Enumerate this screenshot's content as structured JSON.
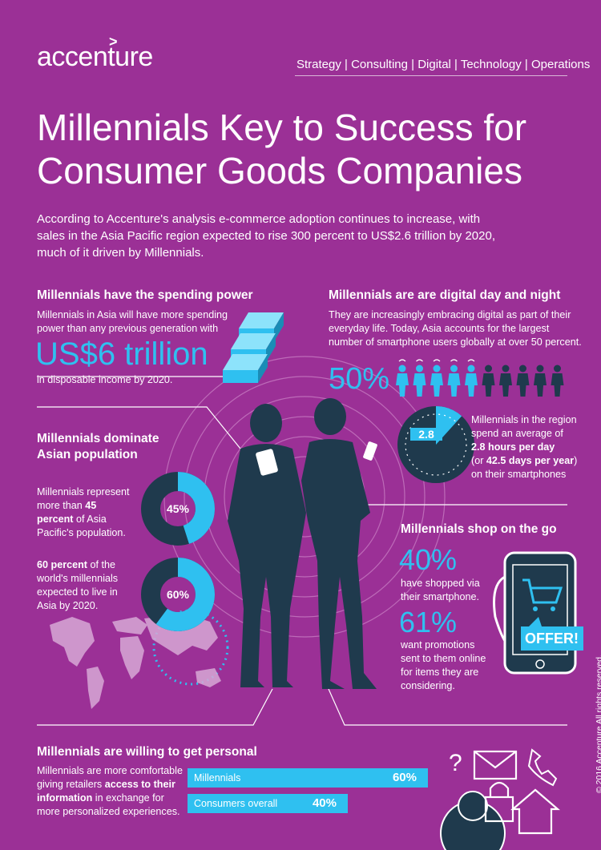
{
  "header": {
    "logo_text": "accenture",
    "logo_mark": ">",
    "nav": "Strategy | Consulting | Digital | Technology | Operations"
  },
  "title_line1": "Millennials Key to Success for",
  "title_line2": "Consumer Goods Companies",
  "intro_line1": "According to Accenture's analysis e-commerce adoption continues to increase, with",
  "intro_line2": "sales in the Asia Pacific region expected to rise 300 percent to US$2.6 trillion by 2020,",
  "intro_line3": "much of it driven by Millennials.",
  "spending": {
    "heading": "Millennials have the spending power",
    "text_line1": "Millennials in Asia will have more spending",
    "text_line2": "power than any previous generation with",
    "amount": "US$6 trillion",
    "caption": "in disposable income by 2020."
  },
  "digital": {
    "heading": "Millennials are are digital day and night",
    "text_line1": "They are increasingly embracing digital as part of their",
    "text_line2": "everyday life. Today, Asia accounts for the largest",
    "text_line3": "number of smartphone users globally at over 50 percent.",
    "percent": "50%",
    "clock_value": "2.8",
    "clock_fraction": 0.117,
    "hours_line1": "Millennials in the region",
    "hours_line2": "spend an average of",
    "hours_value": "2.8 hours per day",
    "days_prefix": "(or ",
    "days_value": "42.5 days per year",
    "days_suffix": ")",
    "hours_line5": "on their smartphones"
  },
  "population": {
    "heading_line1": "Millennials dominate",
    "heading_line2": "Asian population",
    "text1_line1": "Millennials represent",
    "text1_line2_prefix": "more than ",
    "text1_bold1": "45",
    "text1_bold2": "percent",
    "text1_line3_suffix": " of Asia",
    "text1_line4": "Pacific's population.",
    "donut1_label": "45%",
    "donut1_value": 0.45,
    "text2_bold": "60 percent",
    "text2_line1_suffix": " of the",
    "text2_line2": "world's millennials",
    "text2_line3": "expected to live in",
    "text2_line4": "Asia by 2020.",
    "donut2_label": "60%",
    "donut2_value": 0.6
  },
  "shop": {
    "heading": "Millennials shop on the go",
    "stat1": "40%",
    "stat1_line1": "have shopped via",
    "stat1_line2": "their smartphone.",
    "stat2": "61%",
    "stat2_line1": "want promotions",
    "stat2_line2": "sent to them online",
    "stat2_line3": "for items they are",
    "stat2_line4": "considering.",
    "offer": "OFFER!"
  },
  "personal": {
    "heading": "Millennials are willing to get personal",
    "text_line1": "Millennials are more comfortable",
    "text_line2_prefix": "giving retailers ",
    "text_bold1": "access to their",
    "text_bold2": "information",
    "text_line3_suffix": " in exchange for",
    "text_line4": "more personalized experiences.",
    "question_mark": "?"
  },
  "chart_data": {
    "type": "bar",
    "categories": [
      "Millennials",
      "Consumers overall"
    ],
    "values": [
      60,
      40
    ],
    "value_labels": [
      "60%",
      "40%"
    ],
    "xlim": [
      0,
      100
    ]
  },
  "copyright": "© 2016 Accenture All rights reserved.",
  "colors": {
    "background": "#9b3096",
    "accent": "#2fc0f0",
    "dark": "#1f3a4d"
  }
}
